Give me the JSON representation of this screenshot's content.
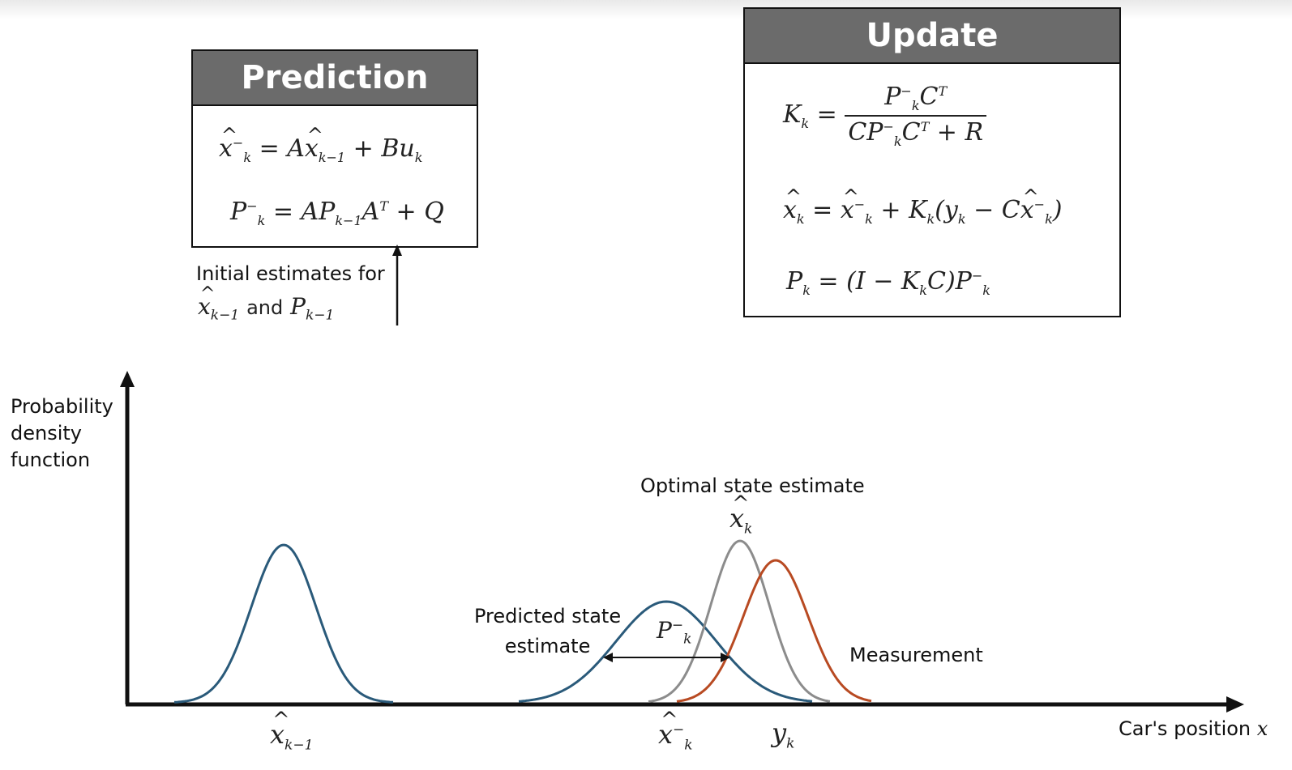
{
  "prediction": {
    "title": "Prediction",
    "eq1": {
      "lhs": "x",
      "rhs_a": "= A",
      "rhs_b": "x",
      "rhs_c": " + Bu"
    },
    "eq2": {
      "lhs": "P",
      "rhs": "= AP",
      "a": "A",
      "q": " + Q"
    },
    "initial_note": "Initial estimates for",
    "initial_and": "and"
  },
  "update": {
    "title": "Update",
    "k_lhs": "K",
    "k_num": "P",
    "k_den": "CP",
    "k_den_r": " + R",
    "x_eq": "= ",
    "p_eq": "= (I − K",
    "p_eq_mid": "C)P"
  },
  "axes": {
    "ylabel_lines": [
      "Probability",
      "density",
      "function"
    ],
    "xlabel": "Car's position",
    "xlabel_var": "x"
  },
  "annotations": {
    "optimal": "Optimal state estimate",
    "predicted_line1": "Predicted state",
    "predicted_line2": "estimate",
    "measurement": "Measurement"
  },
  "colors": {
    "blue": "#2a5a7a",
    "gray": "#8c8c8c",
    "orange": "#b84a22",
    "header": "#6b6b6b"
  }
}
